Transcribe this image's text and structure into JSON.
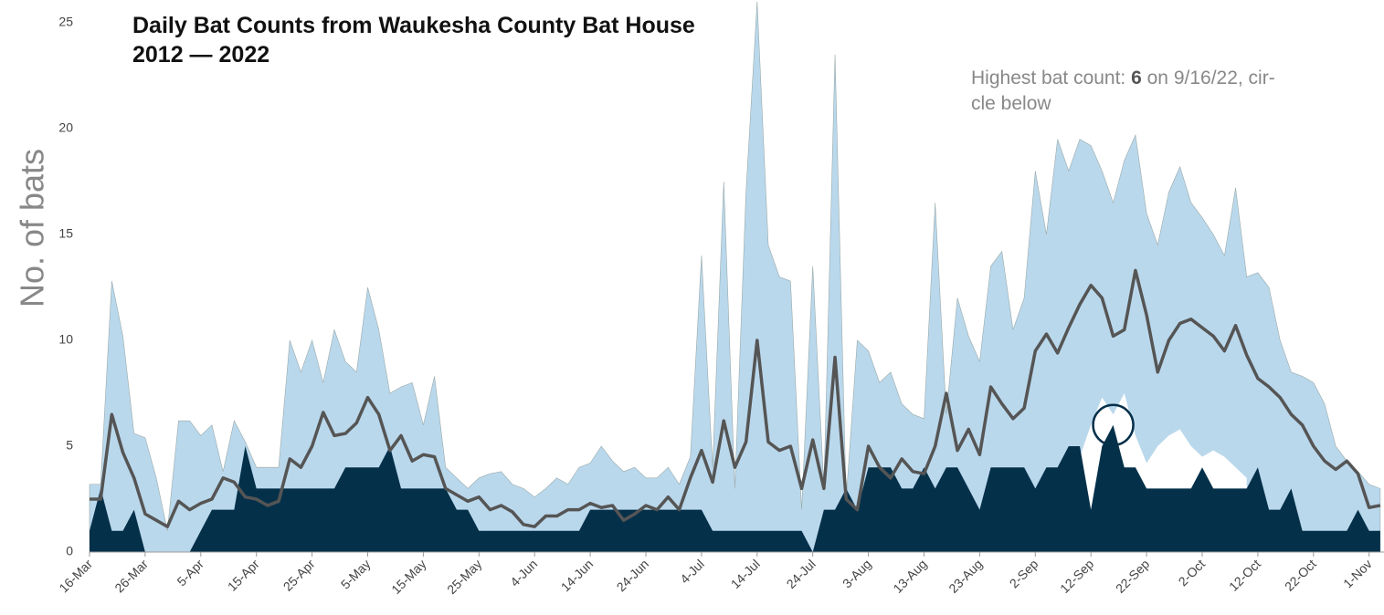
{
  "chart_data": {
    "type": "area",
    "title": "Daily Bat Counts from Waukesha County Bat House 2012 — 2022",
    "y_label": "No. of bats",
    "annotation": [
      "Highest bat count: ",
      "6",
      " on 9/16/22, cir-",
      "cle below"
    ],
    "categories": [
      "16-Mar",
      null,
      null,
      null,
      null,
      "26-Mar",
      null,
      null,
      null,
      null,
      "5-Apr",
      null,
      null,
      null,
      null,
      "15-Apr",
      null,
      null,
      null,
      null,
      "25-Apr",
      null,
      null,
      null,
      null,
      "5-May",
      null,
      null,
      null,
      null,
      "15-May",
      null,
      null,
      null,
      null,
      "25-May",
      null,
      null,
      null,
      null,
      "4-Jun",
      null,
      null,
      null,
      null,
      "14-Jun",
      null,
      null,
      null,
      null,
      "24-Jun",
      null,
      null,
      null,
      null,
      "4-Jul",
      null,
      null,
      null,
      null,
      "14-Jul",
      null,
      null,
      null,
      null,
      "24-Jul",
      null,
      null,
      null,
      null,
      "3-Aug",
      null,
      null,
      null,
      null,
      "13-Aug",
      null,
      null,
      null,
      null,
      "23-Aug",
      null,
      null,
      null,
      null,
      "2-Sep",
      null,
      null,
      null,
      null,
      "12-Sep",
      null,
      null,
      null,
      null,
      "22-Sep",
      null,
      null,
      null,
      null,
      "2-Oct",
      null,
      null,
      null,
      null,
      "12-Oct",
      null,
      null,
      null,
      null,
      "22-Oct",
      null,
      null,
      null,
      null,
      "1-Nov",
      null
    ],
    "series": [
      {
        "color": "#bad8ec",
        "kind": "area",
        "values": [
          3.2,
          3.2,
          12.8,
          10.2,
          5.6,
          5.4,
          3.5,
          1.0,
          6.2,
          6.2,
          5.5,
          6.0,
          3.8,
          6.2,
          5.2,
          4.0,
          4.0,
          4.0,
          10.0,
          8.5,
          10.0,
          8.0,
          10.5,
          9.0,
          8.5,
          12.5,
          10.5,
          7.5,
          7.8,
          8.0,
          6.0,
          8.3,
          4.0,
          3.5,
          3.0,
          3.5,
          3.7,
          3.8,
          3.2,
          3.0,
          2.6,
          3.0,
          3.5,
          3.2,
          4.0,
          4.2,
          5.0,
          4.3,
          3.8,
          4.0,
          3.5,
          3.5,
          4.0,
          3.2,
          4.5,
          14.0,
          4.0,
          17.5,
          3.0,
          17.0,
          26,
          14.5,
          13.0,
          12.8,
          2.0,
          13.5,
          3.0,
          23.5,
          2.5,
          10.0,
          9.5,
          8.0,
          8.5,
          7.0,
          6.5,
          6.3,
          16.5,
          6.5,
          12.0,
          10.2,
          9.0,
          13.5,
          14.2,
          10.5,
          12.0,
          18.0,
          15.0,
          19.5,
          18.0,
          19.5,
          19.2,
          18.0,
          16.5,
          18.5,
          19.7,
          16.0,
          14.5,
          17.0,
          18.2,
          16.5,
          15.8,
          15.0,
          14.0,
          17.2,
          13.0,
          13.2,
          12.5,
          10.0,
          8.5,
          8.3,
          8.0,
          7.0,
          5.0,
          4.3,
          3.8,
          3.2,
          3.0
        ]
      },
      {
        "color": "#ffffff",
        "kind": "area",
        "values": [
          null,
          null,
          null,
          null,
          null,
          null,
          null,
          null,
          null,
          null,
          null,
          null,
          null,
          null,
          null,
          null,
          null,
          null,
          null,
          null,
          null,
          null,
          null,
          null,
          null,
          null,
          null,
          null,
          null,
          null,
          null,
          null,
          null,
          null,
          null,
          null,
          null,
          null,
          null,
          null,
          null,
          null,
          null,
          null,
          null,
          null,
          null,
          null,
          null,
          null,
          null,
          null,
          null,
          null,
          null,
          null,
          null,
          null,
          null,
          null,
          null,
          null,
          null,
          null,
          null,
          null,
          null,
          null,
          null,
          null,
          null,
          null,
          null,
          null,
          null,
          null,
          null,
          null,
          null,
          null,
          null,
          null,
          null,
          null,
          null,
          null,
          null,
          null,
          null,
          4.5,
          6,
          7.3,
          6.5,
          7.5,
          5.5,
          4.2,
          5.0,
          5.5,
          5.8,
          5.0,
          4.5,
          4.8,
          4.5,
          4.0,
          3.5,
          null,
          null,
          null,
          null,
          null,
          null,
          null,
          null,
          null,
          null,
          null,
          null
        ]
      },
      {
        "color": "#05304a",
        "kind": "area",
        "values": [
          1,
          3,
          1,
          1,
          2,
          0,
          0,
          0,
          0,
          0,
          1,
          2,
          2,
          2,
          5,
          3,
          3,
          3,
          3,
          3,
          3,
          3,
          3,
          4,
          4,
          4,
          4,
          5,
          3,
          3,
          3,
          3,
          3,
          2,
          2,
          1,
          1,
          1,
          1,
          1,
          1,
          1,
          1,
          1,
          1,
          2,
          2,
          2,
          2,
          2,
          2,
          2,
          2,
          2,
          2,
          2,
          1,
          1,
          1,
          1,
          1,
          1,
          1,
          1,
          1,
          0,
          2,
          2,
          3,
          2,
          4,
          4,
          4,
          3,
          3,
          4,
          3,
          4,
          4,
          3,
          2,
          4,
          4,
          4,
          4,
          3,
          4,
          4,
          5,
          5,
          2,
          5,
          6,
          4,
          4,
          3,
          3,
          3,
          3,
          3,
          4,
          3,
          3,
          3,
          3,
          4,
          2,
          2,
          3,
          1,
          1,
          1,
          1,
          1,
          2,
          1,
          1
        ]
      },
      {
        "color": "#555555",
        "kind": "line",
        "values": [
          2.5,
          2.5,
          6.5,
          4.7,
          3.5,
          1.8,
          1.5,
          1.2,
          2.4,
          2.0,
          2.3,
          2.5,
          3.5,
          3.3,
          2.6,
          2.5,
          2.2,
          2.4,
          4.4,
          4.0,
          5.0,
          6.6,
          5.5,
          5.6,
          6.1,
          7.3,
          6.5,
          4.8,
          5.5,
          4.3,
          4.6,
          4.5,
          3.0,
          2.7,
          2.4,
          2.6,
          2.0,
          2.2,
          1.9,
          1.3,
          1.2,
          1.7,
          1.7,
          2.0,
          2.0,
          2.3,
          2.1,
          2.2,
          1.5,
          1.8,
          2.2,
          2.0,
          2.6,
          2.0,
          3.5,
          4.8,
          3.3,
          6.2,
          4.0,
          5.2,
          10.0,
          5.2,
          4.8,
          5.0,
          3.0,
          5.3,
          3.0,
          9.2,
          2.5,
          2.0,
          5.0,
          4.0,
          3.5,
          4.4,
          3.8,
          3.7,
          5.0,
          7.5,
          4.8,
          5.8,
          4.6,
          7.8,
          7.0,
          6.3,
          6.8,
          9.5,
          10.3,
          9.4,
          10.6,
          11.7,
          12.6,
          12.0,
          10.2,
          10.5,
          13.3,
          11.2,
          8.5,
          10.0,
          10.8,
          11.0,
          10.6,
          10.2,
          9.5,
          10.7,
          9.3,
          8.2,
          7.8,
          7.3,
          6.5,
          6.0,
          5.0,
          4.3,
          3.9,
          4.3,
          3.7,
          2.1,
          2.2
        ]
      }
    ],
    "highlight_index": 92,
    "ylim": [
      0,
      25
    ],
    "yticks": [
      0,
      5,
      10,
      15,
      20,
      25
    ]
  }
}
